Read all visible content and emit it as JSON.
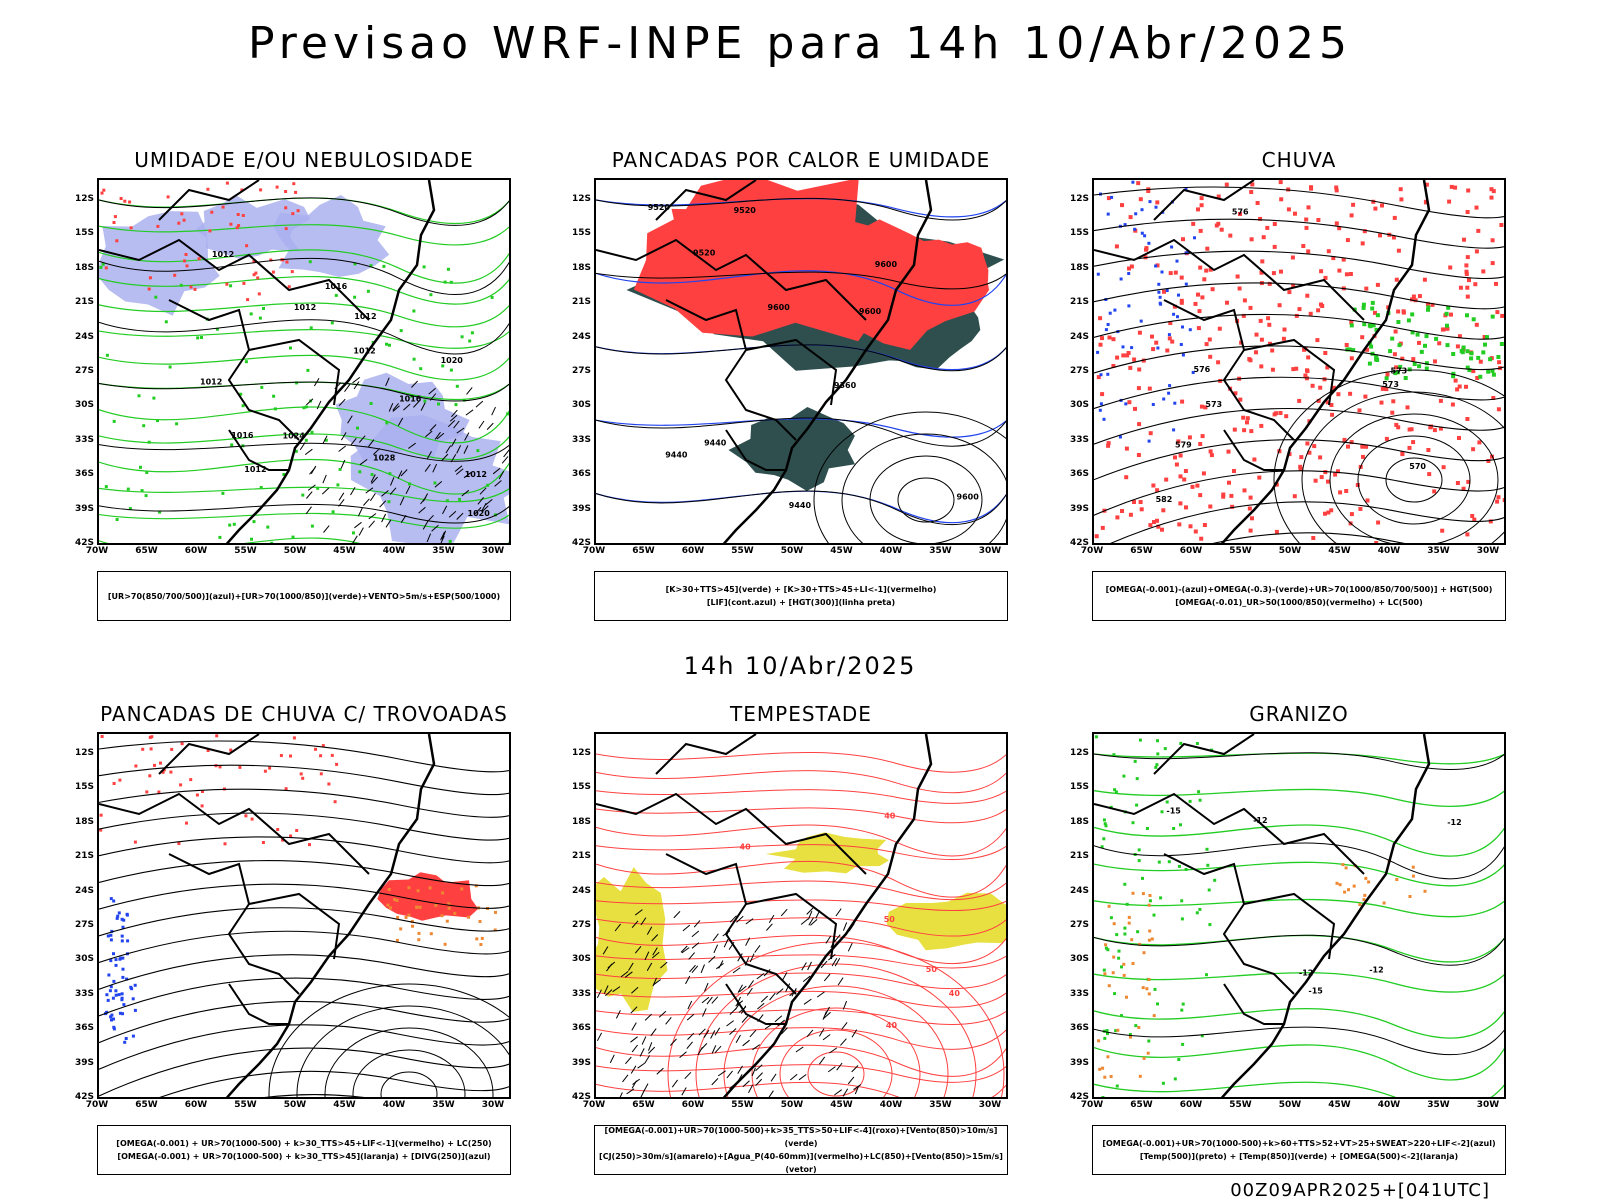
{
  "header": {
    "main_title": "Previsao WRF-INPE  para 14h 10/Abr/2025",
    "mid_time": "14h 10/Abr/2025",
    "footer_stamp": "00Z09APR2025+[041UTC]"
  },
  "axes": {
    "lat_ticks": [
      "12S",
      "15S",
      "18S",
      "21S",
      "24S",
      "27S",
      "30S",
      "33S",
      "36S",
      "39S",
      "42S"
    ],
    "lon_ticks": [
      "70W",
      "65W",
      "60W",
      "55W",
      "50W",
      "45W",
      "40W",
      "35W",
      "30W"
    ]
  },
  "panels": [
    {
      "title": "UMIDADE E/OU NEBULOSIDADE",
      "legend": [
        "[UR>70(850/700/500)](azul)+[UR>70(1000/850)](verde)+VENTO>5m/s+ESP(500/1000)"
      ],
      "contour_labels": [
        "1012",
        "1012",
        "1012",
        "1012",
        "1012",
        "1012",
        "1016",
        "1016",
        "1016",
        "1020",
        "1020",
        "1024",
        "1028",
        "1012"
      ]
    },
    {
      "title": "PANCADAS POR CALOR E UMIDADE",
      "legend": [
        "[K>30+TTS>45](verde) + [K>30+TTS>45+LI<-1](vermelho)",
        "[LIF](cont.azul) + [HGT(300)](linha preta)"
      ],
      "contour_labels": [
        "9600",
        "9600",
        "9600",
        "9520",
        "9520",
        "9520",
        "9440",
        "9440",
        "9360",
        "9440",
        "9600"
      ]
    },
    {
      "title": "CHUVA",
      "legend": [
        "[OMEGA(-0.001)-(azul)+OMEGA(-0.3)-(verde)+UR>70(1000/850/700/500)] + HGT(500)",
        "[OMEGA(-0.01)_UR>50(1000/850)(vermelho) + LC(500)"
      ],
      "contour_labels": [
        "582",
        "573",
        "570",
        "576",
        "576",
        "573",
        "579",
        "573"
      ]
    },
    {
      "title": "PANCADAS DE CHUVA C/ TROVOADAS",
      "legend": [
        "[OMEGA(-0.001) + UR>70(1000-500) + k>30_TTS>45+LIF<-1](vermelho) + LC(250)",
        "[OMEGA(-0.001) + UR>70(1000-500) + k>30_TTS>45](laranja) + [DIVG(250)](azul)"
      ],
      "contour_labels": []
    },
    {
      "title": "TEMPESTADE",
      "legend": [
        "[OMEGA(-0.001)+UR>70(1000-500)+k>35_TTS>50+LIF<-4](roxo)+[Vento(850)>10m/s](verde)",
        "[CJ(250)>30m/s](amarelo)+[Agua_P(40-60mm)](vermelho)+LC(850)+[Vento(850)>15m/s](vetor)"
      ],
      "contour_labels": [
        "50",
        "40",
        "40",
        "40",
        "40",
        "50"
      ]
    },
    {
      "title": "GRANIZO",
      "legend": [
        "[OMEGA(-0.001)+UR>70(1000-500)+k>60+TTS>52+VT>25+SWEAT>220+LIF<-2](azul)",
        "[Temp(500)](preto) + [Temp(850)](verde) + [OMEGA(500)<-2](laranja)"
      ],
      "contour_labels": [
        "-12",
        "-12",
        "-12",
        "-12",
        "-15",
        "-15"
      ]
    }
  ],
  "colors": {
    "red": "#ff4040",
    "green": "#22cc22",
    "blue": "#2244ee",
    "lavender": "#aab0ee",
    "darkteal": "#2f4f4f",
    "yellow": "#e8e040",
    "orange": "#ee8833"
  }
}
